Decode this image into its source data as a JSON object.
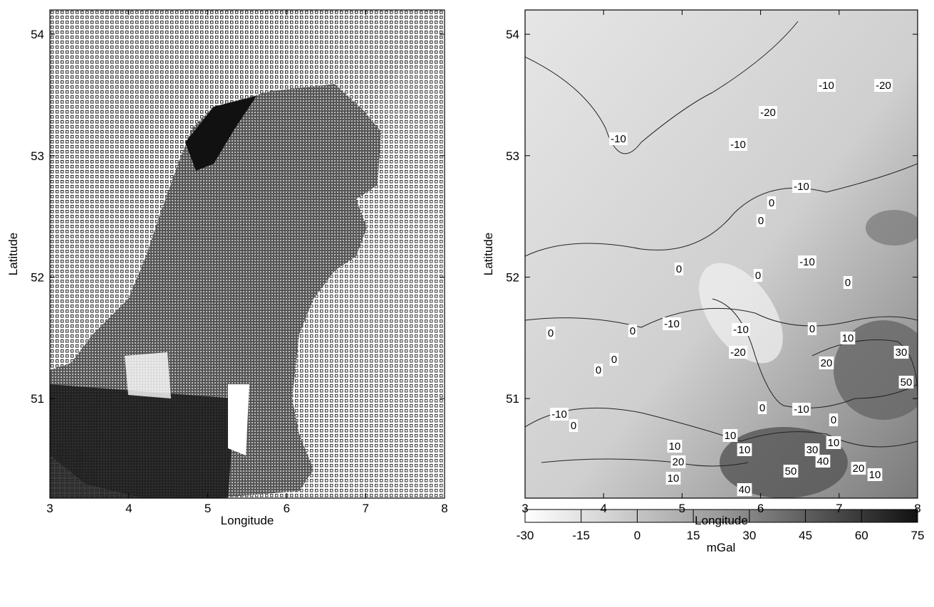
{
  "left_map": {
    "xlabel": "Longitude",
    "ylabel": "Latitude",
    "xlim": [
      3,
      8
    ],
    "ylim": [
      50.18,
      54.2
    ],
    "xticks": [
      3,
      4,
      5,
      6,
      7,
      8
    ],
    "yticks": [
      51,
      52,
      53,
      54
    ]
  },
  "right_map": {
    "xlabel": "Longitude",
    "ylabel": "Latitude",
    "xlim": [
      3,
      8
    ],
    "ylim": [
      50.18,
      54.2
    ],
    "xticks": [
      3,
      4,
      5,
      6,
      7,
      8
    ],
    "yticks": [
      51,
      52,
      53,
      54
    ],
    "contour_labels": [
      "-10",
      "-10",
      "-20",
      "-10",
      "-20",
      "-10",
      "0",
      "0",
      "0",
      "0",
      "-10",
      "0",
      "0",
      "0",
      "-10",
      "-10",
      "-20",
      "0",
      "10",
      "20",
      "30",
      "50",
      "0",
      "0",
      "-10",
      "0",
      "0",
      "-10",
      "0",
      "10",
      "10",
      "10",
      "30",
      "10",
      "40",
      "50",
      "20",
      "10",
      "20",
      "10",
      "40"
    ]
  },
  "colorbar": {
    "lim": [
      -30,
      75
    ],
    "ticks": [
      -30,
      -15,
      0,
      15,
      30,
      45,
      60,
      75
    ],
    "label": "mGal"
  }
}
